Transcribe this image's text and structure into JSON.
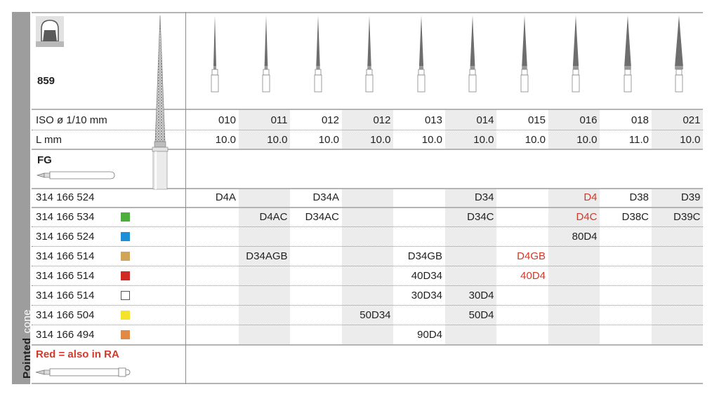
{
  "product": {
    "figure_number": "859",
    "shape_icon": "crown-preparation-icon",
    "sidebar": {
      "bold": "Pointed",
      "light": "cone"
    }
  },
  "specs": {
    "iso_label": "ISO ø 1/10 mm",
    "length_label": "L mm",
    "iso_values": [
      "010",
      "011",
      "012",
      "012",
      "013",
      "014",
      "015",
      "016",
      "018",
      "021"
    ],
    "length_values": [
      "10.0",
      "10.0",
      "10.0",
      "10.0",
      "10.0",
      "10.0",
      "10.0",
      "10.0",
      "11.0",
      "10.0"
    ]
  },
  "shank": {
    "label": "FG"
  },
  "note": "Red = also in RA",
  "colors": {
    "red": "#d1392a",
    "green": "#4caf3c",
    "blue": "#1e8fd6",
    "gold": "#d0a55a",
    "darkred": "#d02a24",
    "white": "#ffffff",
    "yellow": "#f5e22a",
    "orange": "#e08a45"
  },
  "rows": [
    {
      "ref": "314 166 524",
      "swatch": null,
      "cells": [
        "D4A",
        "",
        "D34A",
        "",
        "",
        "D34",
        "",
        "D4",
        "D38",
        "D39"
      ],
      "red": [
        false,
        false,
        false,
        false,
        false,
        false,
        false,
        true,
        false,
        false
      ]
    },
    {
      "ref": "314 166 534",
      "swatch": "green",
      "cells": [
        "",
        "D4AC",
        "D34AC",
        "",
        "",
        "D34C",
        "",
        "D4C",
        "D38C",
        "D39C"
      ],
      "red": [
        false,
        false,
        false,
        false,
        false,
        false,
        false,
        true,
        false,
        false
      ]
    },
    {
      "ref": "314 166 524",
      "swatch": "blue",
      "cells": [
        "",
        "",
        "",
        "",
        "",
        "",
        "",
        "80D4",
        "",
        ""
      ],
      "red": [
        false,
        false,
        false,
        false,
        false,
        false,
        false,
        false,
        false,
        false
      ]
    },
    {
      "ref": "314 166 514",
      "swatch": "gold",
      "cells": [
        "",
        "D34AGB",
        "",
        "",
        "D34GB",
        "",
        "D4GB",
        "",
        "",
        ""
      ],
      "red": [
        false,
        false,
        false,
        false,
        false,
        false,
        true,
        false,
        false,
        false
      ]
    },
    {
      "ref": "314 166 514",
      "swatch": "darkred",
      "cells": [
        "",
        "",
        "",
        "",
        "40D34",
        "",
        "40D4",
        "",
        "",
        ""
      ],
      "red": [
        false,
        false,
        false,
        false,
        false,
        false,
        true,
        false,
        false,
        false
      ]
    },
    {
      "ref": "314 166 514",
      "swatch": "white",
      "cells": [
        "",
        "",
        "",
        "",
        "30D34",
        "30D4",
        "",
        "",
        "",
        ""
      ],
      "red": [
        false,
        false,
        false,
        false,
        false,
        false,
        false,
        false,
        false,
        false
      ]
    },
    {
      "ref": "314 166 504",
      "swatch": "yellow",
      "cells": [
        "",
        "",
        "",
        "50D34",
        "",
        "50D4",
        "",
        "",
        "",
        ""
      ],
      "red": [
        false,
        false,
        false,
        false,
        false,
        false,
        false,
        false,
        false,
        false
      ]
    },
    {
      "ref": "314 166 494",
      "swatch": "orange",
      "cells": [
        "",
        "",
        "",
        "",
        "90D4",
        "",
        "",
        "",
        "",
        ""
      ],
      "red": [
        false,
        false,
        false,
        false,
        false,
        false,
        false,
        false,
        false,
        false
      ]
    }
  ]
}
